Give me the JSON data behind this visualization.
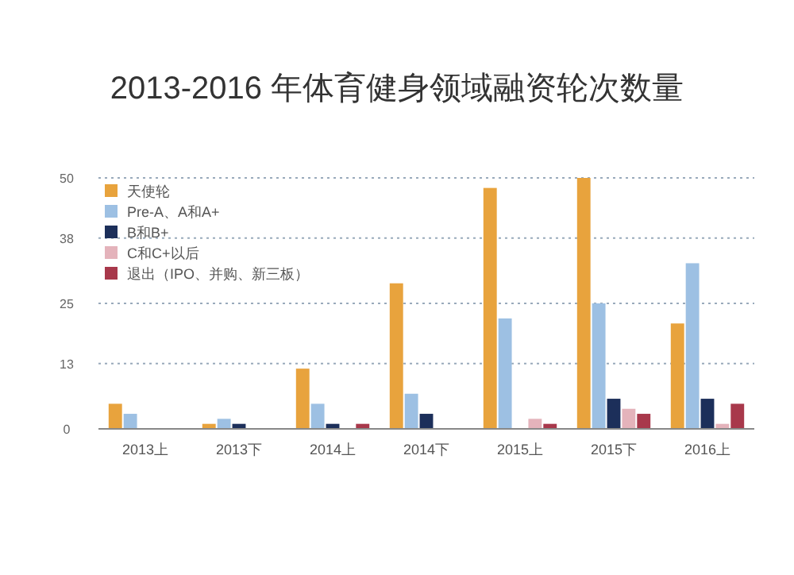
{
  "chart_data": {
    "type": "bar",
    "title": "2013-2016 年体育健身领域融资轮次数量",
    "categories": [
      "2013上",
      "2013下",
      "2014上",
      "2014下",
      "2015上",
      "2015下",
      "2016上"
    ],
    "series": [
      {
        "name": "天使轮",
        "color": "#e8a33d",
        "values": [
          5,
          1,
          12,
          29,
          48,
          50,
          21
        ]
      },
      {
        "name": "Pre-A、A和A+",
        "color": "#9dc0e3",
        "values": [
          3,
          2,
          5,
          7,
          22,
          25,
          33
        ]
      },
      {
        "name": "B和B+",
        "color": "#1c2f5a",
        "values": [
          null,
          1,
          1,
          3,
          null,
          6,
          6
        ]
      },
      {
        "name": "C和C+以后",
        "color": "#e4b3bb",
        "values": [
          null,
          null,
          null,
          null,
          2,
          4,
          1
        ]
      },
      {
        "name": "退出（IPO、并购、新三板）",
        "color": "#a8384b",
        "values": [
          null,
          null,
          1,
          null,
          1,
          3,
          5
        ]
      }
    ],
    "ylim": [
      0,
      50
    ],
    "yticks": [
      0,
      13,
      25,
      38,
      50
    ],
    "grid": "y",
    "legend": "top left"
  }
}
